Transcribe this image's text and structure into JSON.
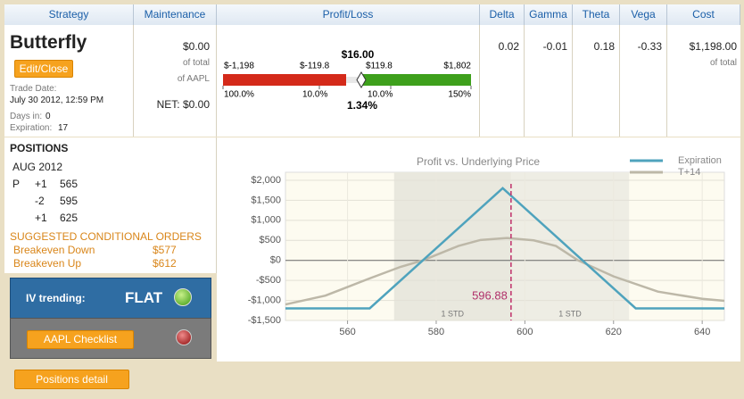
{
  "header": [
    "Strategy",
    "Maintenance",
    "Profit/Loss",
    "Delta",
    "Gamma",
    "Theta",
    "Vega",
    "Cost"
  ],
  "strategy": {
    "name": "Butterfly",
    "button": "Edit/Close",
    "trade_date_label": "Trade Date:",
    "trade_date": "July 30 2012, 12:59 PM",
    "days_in_label": "Days in:",
    "days_in": "0",
    "expiration_label": "Expiration:",
    "expiration": "17"
  },
  "maintenance": {
    "value": "$0.00",
    "of_total": "of total",
    "of_symbol": "of AAPL",
    "net": "NET: $0.00"
  },
  "profit_loss": {
    "value": "$16.00",
    "min": "$-1,198",
    "low": "$-119.8",
    "high": "$119.8",
    "max": "$1,802",
    "min_pct": "100.0%",
    "low_pct": "10.0%",
    "high_pct": "10.0%",
    "max_pct": "150%",
    "pct": "1.34%"
  },
  "greeks": {
    "delta": "0.02",
    "gamma": "-0.01",
    "theta": "0.18",
    "vega": "-0.33"
  },
  "cost": {
    "value": "$1,198.00",
    "of_total": "of total"
  },
  "positions": {
    "title": "POSITIONS",
    "month": "AUG 2012",
    "rows": [
      [
        "P",
        "+1",
        "565"
      ],
      [
        "",
        "-2",
        "595"
      ],
      [
        "",
        "+1",
        "625"
      ]
    ]
  },
  "orders": {
    "title": "SUGGESTED CONDITIONAL ORDERS",
    "rows": [
      [
        "Breakeven Down",
        "$577"
      ],
      [
        "Breakeven Up",
        "$612"
      ]
    ]
  },
  "iv": {
    "label": "IV trending:",
    "value": "FLAT"
  },
  "checklist_button": "AAPL Checklist",
  "detail_button": "Positions detail",
  "chart_data": {
    "type": "line",
    "title": "Profit vs. Underlying Price",
    "xlim": [
      546,
      645
    ],
    "ylim": [
      -1500,
      2200
    ],
    "xticks": [
      560,
      580,
      600,
      620,
      640
    ],
    "yticks": [
      {
        "value": 2000,
        "label": "$2,000"
      },
      {
        "value": 1500,
        "label": "$1,500"
      },
      {
        "value": 1000,
        "label": "$1,000"
      },
      {
        "value": 500,
        "label": "$500"
      },
      {
        "value": 0,
        "label": "$0"
      },
      {
        "value": -500,
        "label": "-$500"
      },
      {
        "value": -1000,
        "label": "-$1,000"
      },
      {
        "value": -1500,
        "label": "-$1,500"
      }
    ],
    "grid": true,
    "legend": "top-right",
    "series": [
      {
        "name": "Expiration",
        "color": "#4fa3bd",
        "x": [
          546,
          565,
          595,
          625,
          645
        ],
        "values": [
          -1198,
          -1198,
          1802,
          -1198,
          -1198
        ]
      },
      {
        "name": "T+14",
        "color": "#bdb8a8",
        "x": [
          546,
          555,
          565,
          572,
          577,
          585,
          590,
          596,
          602,
          607,
          612,
          620,
          630,
          640,
          645
        ],
        "values": [
          -1100,
          -880,
          -450,
          -160,
          0,
          360,
          510,
          560,
          500,
          360,
          0,
          -400,
          -780,
          -960,
          -1010
        ]
      }
    ],
    "price_line": 596.88,
    "std_bands": [
      {
        "from": 570.5,
        "to": 596.88,
        "label": "1 STD"
      },
      {
        "from": 596.88,
        "to": 623.5,
        "label": "1 STD"
      }
    ]
  }
}
